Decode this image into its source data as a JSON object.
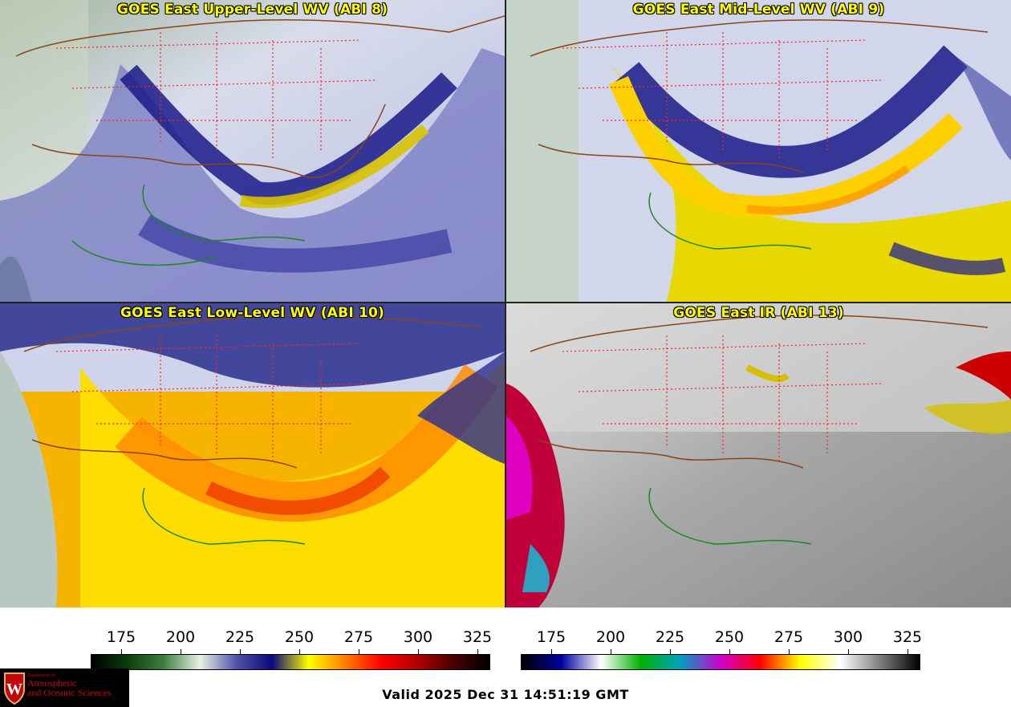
{
  "panels": [
    {
      "title": "GOES East Upper-Level WV (ABI 8)"
    },
    {
      "title": "GOES East Mid-Level WV (ABI 9)"
    },
    {
      "title": "GOES East Low-Level WV (ABI 10)"
    },
    {
      "title": "GOES East IR (ABI 13)"
    }
  ],
  "colorbar_wv": {
    "ticks": [
      "175",
      "200",
      "225",
      "250",
      "275",
      "300",
      "325"
    ],
    "colors": [
      "#000000",
      "#0b3d0b",
      "#3f7f3f",
      "#eaf2e4",
      "#4f54a8",
      "#0a0a7a",
      "#ffff00",
      "#ff8000",
      "#ff0000",
      "#b00000",
      "#4a0000",
      "#000000"
    ]
  },
  "colorbar_ir": {
    "ticks": [
      "175",
      "200",
      "225",
      "250",
      "275",
      "300",
      "325"
    ],
    "colors": [
      "#000000",
      "#0000a0",
      "#ffffff",
      "#00b000",
      "#00a0c0",
      "#d000d0",
      "#ff0000",
      "#ffff00",
      "#ffffff",
      "#808080",
      "#000000"
    ]
  },
  "logo": {
    "line1": "Department of",
    "line2": "Atmospheric",
    "line3": "and Oceanic Sciences",
    "emblem": "W"
  },
  "valid_time": "Valid 2025 Dec 31 14:51:19 GMT"
}
